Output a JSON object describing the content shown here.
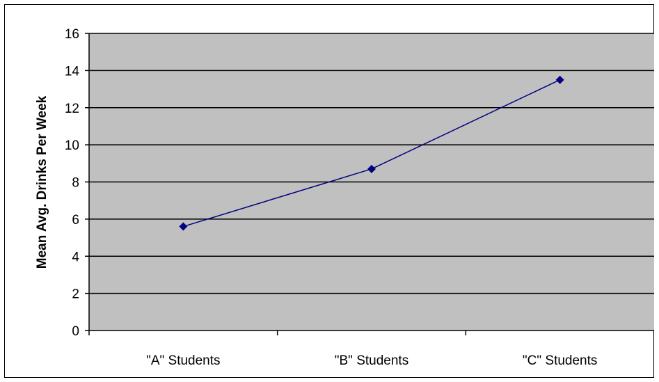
{
  "chart_data": {
    "type": "line",
    "title": "",
    "xlabel": "",
    "ylabel": "Mean Avg. Drinks Per Week",
    "categories": [
      "\"A\" Students",
      "\"B\" Students",
      "\"C\" Students"
    ],
    "series": [
      {
        "values": [
          5.6,
          8.7,
          13.5
        ],
        "color": "#000080",
        "marker": "diamond"
      }
    ],
    "ylim": [
      0,
      16
    ],
    "yticks": [
      0,
      2,
      4,
      6,
      8,
      10,
      12,
      14,
      16
    ],
    "grid": true,
    "legend": "none",
    "plot_background": "#c0c0c0"
  }
}
